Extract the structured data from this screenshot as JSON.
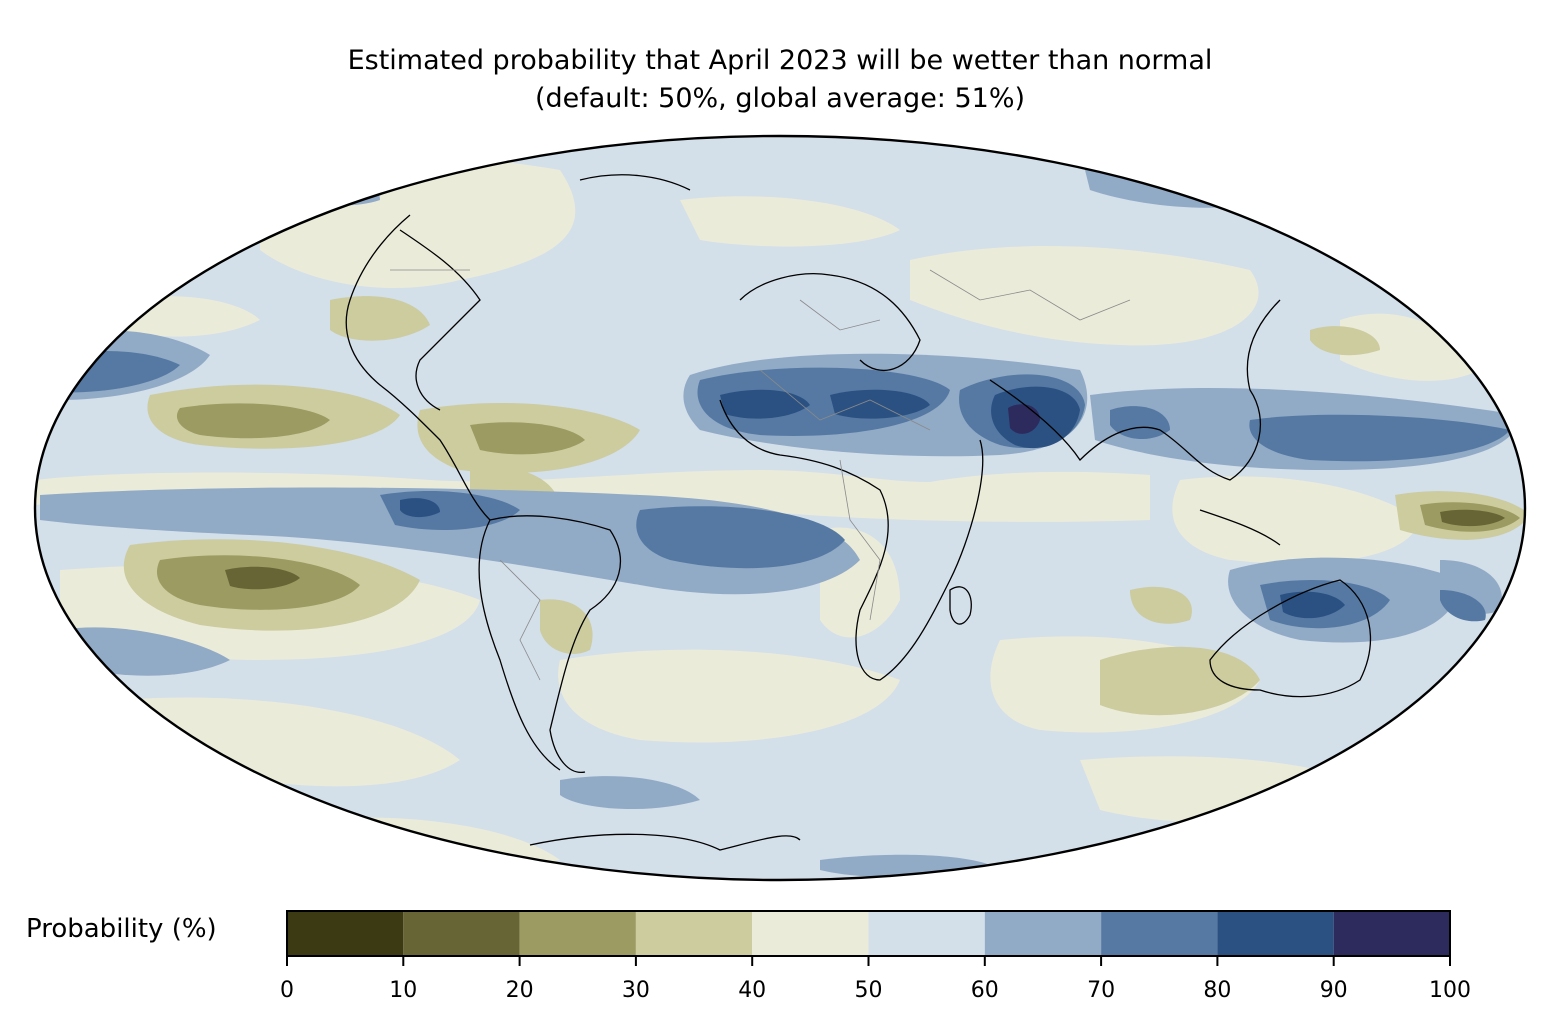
{
  "title": {
    "line1": "Estimated probability that April 2023 will be wetter than normal",
    "line2": "(default: 50%, global average: 51%)"
  },
  "colorbar": {
    "label": "Probability (%)",
    "ticks": [
      "0",
      "10",
      "20",
      "30",
      "40",
      "50",
      "60",
      "70",
      "80",
      "90",
      "100"
    ],
    "bins": [
      {
        "range": [
          0,
          10
        ],
        "color": "#3b3a13"
      },
      {
        "range": [
          10,
          20
        ],
        "color": "#676535"
      },
      {
        "range": [
          20,
          30
        ],
        "color": "#9c9b62"
      },
      {
        "range": [
          30,
          40
        ],
        "color": "#cccc9f"
      },
      {
        "range": [
          40,
          50
        ],
        "color": "#ebebda"
      },
      {
        "range": [
          50,
          60
        ],
        "color": "#d3dfe9"
      },
      {
        "range": [
          60,
          70
        ],
        "color": "#91aac6"
      },
      {
        "range": [
          70,
          80
        ],
        "color": "#5579a3"
      },
      {
        "range": [
          80,
          90
        ],
        "color": "#2b5183"
      },
      {
        "range": [
          90,
          100
        ],
        "color": "#2d2b5d"
      }
    ]
  },
  "map": {
    "projection": "Mollweide",
    "central_longitude": 0,
    "ocean_base_color": "#d3dfe9",
    "coastline_color": "#000000",
    "border_color": "#8a8a8a"
  }
}
